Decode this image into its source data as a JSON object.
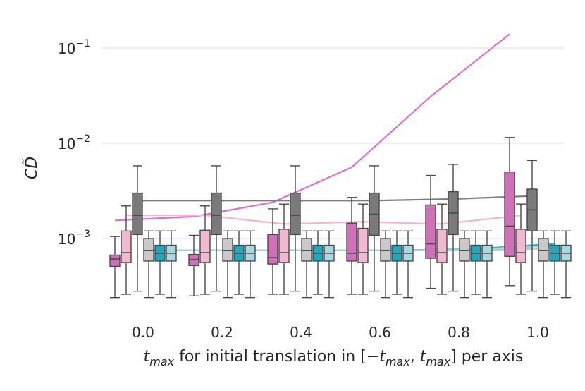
{
  "chart_data": {
    "type": "box",
    "xlabel": "t_max for initial translation in [−t_max, t_max] per axis",
    "ylabel": "CD̃",
    "y_scale": "log",
    "ylim": [
      0.00018,
      0.16
    ],
    "grid": true,
    "categories": [
      "0.0",
      "0.2",
      "0.4",
      "0.6",
      "0.8",
      "1.0"
    ],
    "yticks": [
      {
        "value": 0.001,
        "base": "10",
        "exp": "−3"
      },
      {
        "value": 0.01,
        "base": "10",
        "exp": "−2"
      },
      {
        "value": 0.1,
        "base": "10",
        "exp": "−1"
      }
    ],
    "xlabel_parts": [
      {
        "text": "t",
        "italic": true
      },
      {
        "text": "max",
        "italic": true,
        "sub": true
      },
      {
        "text": " for initial translation in [−"
      },
      {
        "text": "t",
        "italic": true
      },
      {
        "text": "max",
        "italic": true,
        "sub": true
      },
      {
        "text": ", "
      },
      {
        "text": "t",
        "italic": true
      },
      {
        "text": "max",
        "italic": true,
        "sub": true
      },
      {
        "text": "] per axis"
      }
    ],
    "series": [
      {
        "color": "#d070b8",
        "line_color": "#e070c8",
        "mean": [
          0.00155,
          0.0017,
          0.0024,
          0.0056,
          0.031,
          0.14
        ],
        "boxes": [
          {
            "whislo": 0.00024,
            "q1": 0.00051,
            "med": 0.00061,
            "q3": 0.00067,
            "whishi": 0.00105
          },
          {
            "whislo": 0.00025,
            "q1": 0.00052,
            "med": 0.0006,
            "q3": 0.00068,
            "whishi": 0.00108
          },
          {
            "whislo": 0.00026,
            "q1": 0.00054,
            "med": 0.00063,
            "q3": 0.0011,
            "whishi": 0.00205
          },
          {
            "whislo": 0.00026,
            "q1": 0.00058,
            "med": 0.0007,
            "q3": 0.00145,
            "whishi": 0.0027
          },
          {
            "whislo": 0.0003,
            "q1": 0.00062,
            "med": 0.00088,
            "q3": 0.00225,
            "whishi": 0.0046
          },
          {
            "whislo": 0.00032,
            "q1": 0.00065,
            "med": 0.00135,
            "q3": 0.005,
            "whishi": 0.0115
          }
        ]
      },
      {
        "color": "#f1b8d2",
        "line_color": "#f5b3d0",
        "mean": [
          0.00175,
          0.00175,
          0.00142,
          0.0015,
          0.00142,
          0.00175
        ],
        "boxes": [
          {
            "whislo": 0.00026,
            "q1": 0.00056,
            "med": 0.00071,
            "q3": 0.0012,
            "whishi": 0.0022
          },
          {
            "whislo": 0.00026,
            "q1": 0.00056,
            "med": 0.00071,
            "q3": 0.00122,
            "whishi": 0.0022
          },
          {
            "whislo": 0.00026,
            "q1": 0.00056,
            "med": 0.00071,
            "q3": 0.00125,
            "whishi": 0.0023
          },
          {
            "whislo": 0.00026,
            "q1": 0.00056,
            "med": 0.00071,
            "q3": 0.00128,
            "whishi": 0.0023
          },
          {
            "whislo": 0.00026,
            "q1": 0.00056,
            "med": 0.00071,
            "q3": 0.00125,
            "whishi": 0.0023
          },
          {
            "whislo": 0.00026,
            "q1": 0.00056,
            "med": 0.00071,
            "q3": 0.00125,
            "whishi": 0.0023
          }
        ]
      },
      {
        "color": "#7a7a7a",
        "line_color": "#7f7f7f",
        "mean": [
          0.0025,
          0.0025,
          0.0025,
          0.0025,
          0.0026,
          0.0028
        ],
        "boxes": [
          {
            "whislo": 0.00028,
            "q1": 0.0011,
            "med": 0.00175,
            "q3": 0.003,
            "whishi": 0.0058
          },
          {
            "whislo": 0.00028,
            "q1": 0.0011,
            "med": 0.00175,
            "q3": 0.003,
            "whishi": 0.0058
          },
          {
            "whislo": 0.00028,
            "q1": 0.0011,
            "med": 0.00175,
            "q3": 0.003,
            "whishi": 0.0058
          },
          {
            "whislo": 0.00028,
            "q1": 0.00108,
            "med": 0.0018,
            "q3": 0.003,
            "whishi": 0.0058
          },
          {
            "whislo": 0.00028,
            "q1": 0.0011,
            "med": 0.00185,
            "q3": 0.0031,
            "whishi": 0.006
          },
          {
            "whislo": 0.00028,
            "q1": 0.0012,
            "med": 0.002,
            "q3": 0.0033,
            "whishi": 0.0066
          }
        ]
      },
      {
        "color": "#c9c9c9",
        "line_color": "#c7c7c7",
        "mean": [
          0.00075,
          0.00075,
          0.00075,
          0.00075,
          0.00075,
          0.00078
        ],
        "boxes": [
          {
            "whislo": 0.00024,
            "q1": 0.00058,
            "med": 0.00075,
            "q3": 0.001,
            "whishi": 0.0012
          },
          {
            "whislo": 0.00024,
            "q1": 0.00058,
            "med": 0.00075,
            "q3": 0.001,
            "whishi": 0.0012
          },
          {
            "whislo": 0.00024,
            "q1": 0.00058,
            "med": 0.00075,
            "q3": 0.001,
            "whishi": 0.0012
          },
          {
            "whislo": 0.00024,
            "q1": 0.00058,
            "med": 0.00075,
            "q3": 0.001,
            "whishi": 0.0012
          },
          {
            "whislo": 0.00024,
            "q1": 0.00058,
            "med": 0.00075,
            "q3": 0.001,
            "whishi": 0.0012
          },
          {
            "whislo": 0.00024,
            "q1": 0.00058,
            "med": 0.00075,
            "q3": 0.001,
            "whishi": 0.0012
          }
        ]
      },
      {
        "color": "#23a5bb",
        "line_color": "#2cb5c8",
        "mean": [
          0.00075,
          0.00075,
          0.00075,
          0.00075,
          0.00078,
          0.00088
        ],
        "boxes": [
          {
            "whislo": 0.00026,
            "q1": 0.00058,
            "med": 0.0007,
            "q3": 0.00085,
            "whishi": 0.0012
          },
          {
            "whislo": 0.00026,
            "q1": 0.00058,
            "med": 0.0007,
            "q3": 0.00085,
            "whishi": 0.0012
          },
          {
            "whislo": 0.00026,
            "q1": 0.00058,
            "med": 0.0007,
            "q3": 0.00085,
            "whishi": 0.0012
          },
          {
            "whislo": 0.00026,
            "q1": 0.00058,
            "med": 0.0007,
            "q3": 0.00085,
            "whishi": 0.0012
          },
          {
            "whislo": 0.00026,
            "q1": 0.00058,
            "med": 0.0007,
            "q3": 0.00085,
            "whishi": 0.0012
          },
          {
            "whislo": 0.00026,
            "q1": 0.00058,
            "med": 0.0007,
            "q3": 0.00085,
            "whishi": 0.0012
          }
        ]
      },
      {
        "color": "#a8d9e2",
        "line_color": "#9fd4de",
        "mean": [
          0.00075,
          0.00075,
          0.00075,
          0.00075,
          0.00078,
          0.00085
        ],
        "boxes": [
          {
            "whislo": 0.00024,
            "q1": 0.00058,
            "med": 0.0007,
            "q3": 0.00085,
            "whishi": 0.0012
          },
          {
            "whislo": 0.00024,
            "q1": 0.00058,
            "med": 0.0007,
            "q3": 0.00085,
            "whishi": 0.0012
          },
          {
            "whislo": 0.00024,
            "q1": 0.00058,
            "med": 0.0007,
            "q3": 0.00085,
            "whishi": 0.0012
          },
          {
            "whislo": 0.00024,
            "q1": 0.00058,
            "med": 0.0007,
            "q3": 0.00085,
            "whishi": 0.0012
          },
          {
            "whislo": 0.00024,
            "q1": 0.00058,
            "med": 0.0007,
            "q3": 0.00085,
            "whishi": 0.0012
          },
          {
            "whislo": 0.00024,
            "q1": 0.00058,
            "med": 0.0007,
            "q3": 0.00085,
            "whishi": 0.0012
          }
        ]
      }
    ],
    "colors": {
      "grid": "#e6e6e6",
      "whisker": "#4a4a4a",
      "text": "#262626"
    }
  }
}
